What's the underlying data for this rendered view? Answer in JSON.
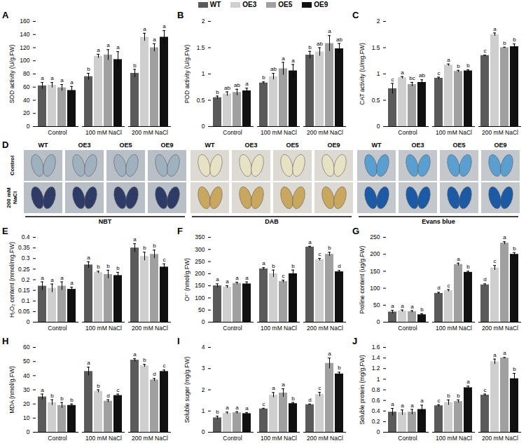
{
  "chart_data": [
    {
      "panel": "A",
      "type": "bar",
      "legend": "top",
      "y_label": "SOD activity (U/g.FW)",
      "categories": [
        "Control",
        "100 mM NaCl",
        "200 mM NaCl"
      ],
      "ylim": [
        0,
        160
      ],
      "yticks": [
        0,
        20,
        40,
        60,
        80,
        100,
        120,
        140,
        160
      ],
      "series": [
        {
          "name": "WT",
          "color": "#5a5a5a",
          "values": [
            62,
            76,
            81
          ],
          "errors": [
            5,
            5,
            6
          ],
          "letters": [
            "a",
            "b",
            "b"
          ]
        },
        {
          "name": "OE3",
          "color": "#cfcfcf",
          "values": [
            63,
            107,
            136
          ],
          "errors": [
            4,
            3,
            6
          ],
          "letters": [
            "a",
            "a",
            "a"
          ]
        },
        {
          "name": "OE5",
          "color": "#a0a0a0",
          "values": [
            59,
            109,
            120
          ],
          "errors": [
            5,
            8,
            6
          ],
          "letters": [
            "a",
            "a",
            "a"
          ]
        },
        {
          "name": "OE9",
          "color": "#111111",
          "values": [
            55,
            102,
            136
          ],
          "errors": [
            6,
            12,
            10
          ],
          "letters": [
            "a",
            "a",
            "a"
          ]
        }
      ]
    },
    {
      "panel": "B",
      "type": "bar",
      "y_label": "POD activity (U/g.FW)",
      "categories": [
        "Control",
        "100 mM NaCl",
        "200 mM NaCl"
      ],
      "ylim": [
        0,
        2
      ],
      "yticks": [
        0,
        0.5,
        1,
        1.5,
        2
      ],
      "series": [
        {
          "name": "WT",
          "color": "#5a5a5a",
          "values": [
            0.55,
            0.83,
            1.36
          ],
          "errors": [
            0.03,
            0.02,
            0.07
          ],
          "letters": [
            "b",
            "b",
            "b"
          ]
        },
        {
          "name": "OE3",
          "color": "#cfcfcf",
          "values": [
            0.62,
            0.95,
            1.42
          ],
          "errors": [
            0.04,
            0.06,
            0.08
          ],
          "letters": [
            "ab",
            "ab",
            "ab"
          ]
        },
        {
          "name": "OE5",
          "color": "#a0a0a0",
          "values": [
            0.65,
            1.1,
            1.58
          ],
          "errors": [
            0.06,
            0.12,
            0.15
          ],
          "letters": [
            "ab",
            "a",
            "a"
          ]
        },
        {
          "name": "OE9",
          "color": "#111111",
          "values": [
            0.68,
            1.06,
            1.48
          ],
          "errors": [
            0.05,
            0.12,
            0.1
          ],
          "letters": [
            "a",
            "a",
            "ab"
          ]
        }
      ]
    },
    {
      "panel": "C",
      "type": "bar",
      "y_label": "CAT activity (U/mg.FW)",
      "categories": [
        "Control",
        "100 mM NaCl",
        "200 mM NaCl"
      ],
      "ylim": [
        0,
        2
      ],
      "yticks": [
        0,
        0.5,
        1,
        1.5,
        2
      ],
      "series": [
        {
          "name": "WT",
          "color": "#5a5a5a",
          "values": [
            0.72,
            0.92,
            1.35
          ],
          "errors": [
            0.1,
            0.02,
            0.01
          ],
          "letters": [
            "c",
            "c",
            "c"
          ]
        },
        {
          "name": "OE3",
          "color": "#cfcfcf",
          "values": [
            0.93,
            1.17,
            1.75
          ],
          "errors": [
            0.02,
            0.02,
            0.03
          ],
          "letters": [
            "a",
            "a",
            "a"
          ]
        },
        {
          "name": "OE5",
          "color": "#a0a0a0",
          "values": [
            0.8,
            1.05,
            1.5
          ],
          "errors": [
            0.04,
            0.02,
            0.01
          ],
          "letters": [
            "bc",
            "b",
            "b"
          ]
        },
        {
          "name": "OE9",
          "color": "#111111",
          "values": [
            0.84,
            1.06,
            1.52
          ],
          "errors": [
            0.05,
            0.02,
            0.05
          ],
          "letters": [
            "ab",
            "b",
            "b"
          ]
        }
      ]
    },
    {
      "panel": "E",
      "type": "bar",
      "y_label": "H₂O₂ content (mmol/mg.FW)",
      "categories": [
        "Control",
        "100 mM NaCl",
        "200 mM NaCl"
      ],
      "ylim": [
        0,
        0.4
      ],
      "yticks": [
        0,
        0.05,
        0.1,
        0.15,
        0.2,
        0.25,
        0.3,
        0.35,
        0.4
      ],
      "series": [
        {
          "name": "WT",
          "color": "#5a5a5a",
          "values": [
            0.17,
            0.27,
            0.35
          ],
          "errors": [
            0.02,
            0.015,
            0.02
          ],
          "letters": [
            "a",
            "a",
            "a"
          ]
        },
        {
          "name": "OE3",
          "color": "#cfcfcf",
          "values": [
            0.16,
            0.235,
            0.31
          ],
          "errors": [
            0.02,
            0.005,
            0.02
          ],
          "letters": [
            "a",
            "b",
            "b"
          ]
        },
        {
          "name": "OE5",
          "color": "#a0a0a0",
          "values": [
            0.17,
            0.225,
            0.32
          ],
          "errors": [
            0.02,
            0.02,
            0.02
          ],
          "letters": [
            "a",
            "b",
            "b"
          ]
        },
        {
          "name": "OE9",
          "color": "#111111",
          "values": [
            0.155,
            0.22,
            0.26
          ],
          "errors": [
            0.01,
            0.015,
            0.015
          ],
          "letters": [
            "a",
            "b",
            "c"
          ]
        }
      ]
    },
    {
      "panel": "F",
      "type": "bar",
      "y_label": "O²⁻ (nmol/g.FW)",
      "categories": [
        "Control",
        "100 mM NaCl",
        "200 mM NaCl"
      ],
      "ylim": [
        0,
        350
      ],
      "yticks": [
        0,
        50,
        100,
        150,
        200,
        250,
        300,
        350
      ],
      "series": [
        {
          "name": "WT",
          "color": "#5a5a5a",
          "values": [
            150,
            220,
            310
          ],
          "errors": [
            8,
            5,
            3
          ],
          "letters": [
            "a",
            "a",
            "a"
          ]
        },
        {
          "name": "OE3",
          "color": "#cfcfcf",
          "values": [
            145,
            200,
            258
          ],
          "errors": [
            5,
            15,
            5
          ],
          "letters": [
            "a",
            "b",
            "c"
          ]
        },
        {
          "name": "OE5",
          "color": "#a0a0a0",
          "values": [
            160,
            168,
            280
          ],
          "errors": [
            5,
            5,
            8
          ],
          "letters": [
            "a",
            "c",
            "b"
          ]
        },
        {
          "name": "OE9",
          "color": "#111111",
          "values": [
            158,
            200,
            208
          ],
          "errors": [
            8,
            15,
            5
          ],
          "letters": [
            "a",
            "b",
            "d"
          ]
        }
      ]
    },
    {
      "panel": "G",
      "type": "bar",
      "y_label": "Proline content (ug/g.FW)",
      "categories": [
        "Control",
        "100 mM NaCl",
        "200 mM NaCl"
      ],
      "ylim": [
        0,
        250
      ],
      "yticks": [
        0,
        50,
        100,
        150,
        200,
        250
      ],
      "series": [
        {
          "name": "WT",
          "color": "#5a5a5a",
          "values": [
            30,
            85,
            110
          ],
          "errors": [
            5,
            3,
            3
          ],
          "letters": [
            "a",
            "d",
            "d"
          ]
        },
        {
          "name": "OE3",
          "color": "#cfcfcf",
          "values": [
            33,
            93,
            160
          ],
          "errors": [
            3,
            3,
            7
          ],
          "letters": [
            "a",
            "c",
            "c"
          ]
        },
        {
          "name": "OE5",
          "color": "#a0a0a0",
          "values": [
            31,
            170,
            233
          ],
          "errors": [
            3,
            4,
            4
          ],
          "letters": [
            "a",
            "a",
            "a"
          ]
        },
        {
          "name": "OE9",
          "color": "#111111",
          "values": [
            22,
            147,
            200
          ],
          "errors": [
            3,
            3,
            5
          ],
          "letters": [
            "b",
            "b",
            "b"
          ]
        }
      ]
    },
    {
      "panel": "H",
      "type": "bar",
      "y_label": "MDA (nmol/g.FW)",
      "categories": [
        "Control",
        "100 mM NaCl",
        "200 mM NaCl"
      ],
      "ylim": [
        0,
        60
      ],
      "yticks": [
        0,
        10,
        20,
        30,
        40,
        50,
        60
      ],
      "series": [
        {
          "name": "WT",
          "color": "#5a5a5a",
          "values": [
            25,
            43,
            51
          ],
          "errors": [
            2,
            3,
            1
          ],
          "letters": [
            "a",
            "a",
            "a"
          ]
        },
        {
          "name": "OE3",
          "color": "#cfcfcf",
          "values": [
            21,
            29,
            47
          ],
          "errors": [
            2,
            1,
            1
          ],
          "letters": [
            "b",
            "b",
            "b"
          ]
        },
        {
          "name": "OE5",
          "color": "#a0a0a0",
          "values": [
            19,
            22,
            37
          ],
          "errors": [
            2,
            1,
            1
          ],
          "letters": [
            "b",
            "d",
            "d"
          ]
        },
        {
          "name": "OE9",
          "color": "#111111",
          "values": [
            19,
            26,
            43
          ],
          "errors": [
            1,
            1,
            1
          ],
          "letters": [
            "b",
            "c",
            "c"
          ]
        }
      ]
    },
    {
      "panel": "I",
      "type": "bar",
      "y_label": "Soluble suger (mg/g.FW)",
      "categories": [
        "Control",
        "100 mM NaCl",
        "200 mM NaCl"
      ],
      "ylim": [
        0,
        4
      ],
      "yticks": [
        0,
        1,
        2,
        3,
        4
      ],
      "series": [
        {
          "name": "WT",
          "color": "#5a5a5a",
          "values": [
            0.68,
            1.1,
            1.3
          ],
          "errors": [
            0.08,
            0.03,
            0.03
          ],
          "letters": [
            "b",
            "c",
            "d"
          ]
        },
        {
          "name": "OE3",
          "color": "#cfcfcf",
          "values": [
            0.9,
            1.75,
            1.78
          ],
          "errors": [
            0.05,
            0.12,
            0.1
          ],
          "letters": [
            "a",
            "a",
            "c"
          ]
        },
        {
          "name": "OE5",
          "color": "#a0a0a0",
          "values": [
            0.92,
            1.85,
            3.25
          ],
          "errors": [
            0.05,
            0.2,
            0.25
          ],
          "letters": [
            "a",
            "a",
            "a"
          ]
        },
        {
          "name": "OE9",
          "color": "#111111",
          "values": [
            0.88,
            1.35,
            2.75
          ],
          "errors": [
            0.05,
            0.05,
            0.08
          ],
          "letters": [
            "a",
            "b",
            "b"
          ]
        }
      ]
    },
    {
      "panel": "J",
      "type": "bar",
      "y_label": "Soluble protein (mg/g.FW)",
      "categories": [
        "Control",
        "100 mM NaCl",
        "200 mM NaCl"
      ],
      "ylim": [
        0,
        1.6
      ],
      "yticks": [
        0,
        0.2,
        0.4,
        0.6,
        0.8,
        1,
        1.2,
        1.4,
        1.6
      ],
      "series": [
        {
          "name": "WT",
          "color": "#5a5a5a",
          "values": [
            0.38,
            0.5,
            0.7
          ],
          "errors": [
            0.07,
            0.02,
            0.02
          ],
          "letters": [
            "a",
            "c",
            "c"
          ]
        },
        {
          "name": "OE3",
          "color": "#cfcfcf",
          "values": [
            0.37,
            0.56,
            1.33
          ],
          "errors": [
            0.05,
            0.05,
            0.05
          ],
          "letters": [
            "a",
            "b",
            "a"
          ]
        },
        {
          "name": "OE5",
          "color": "#a0a0a0",
          "values": [
            0.38,
            0.58,
            1.4
          ],
          "errors": [
            0.05,
            0.03,
            0.01
          ],
          "letters": [
            "a",
            "b",
            "a"
          ]
        },
        {
          "name": "OE9",
          "color": "#111111",
          "values": [
            0.43,
            0.84,
            1.01
          ],
          "errors": [
            0.08,
            0.03,
            0.1
          ],
          "letters": [
            "a",
            "a",
            "b"
          ]
        }
      ]
    }
  ],
  "photo_panel": {
    "panel": "D",
    "columns": [
      "WT",
      "OE3",
      "OE5",
      "OE9"
    ],
    "rows": [
      "Control",
      "200 mM NaCl"
    ],
    "stains": [
      "NBT",
      "DAB",
      "Evans blue"
    ]
  }
}
